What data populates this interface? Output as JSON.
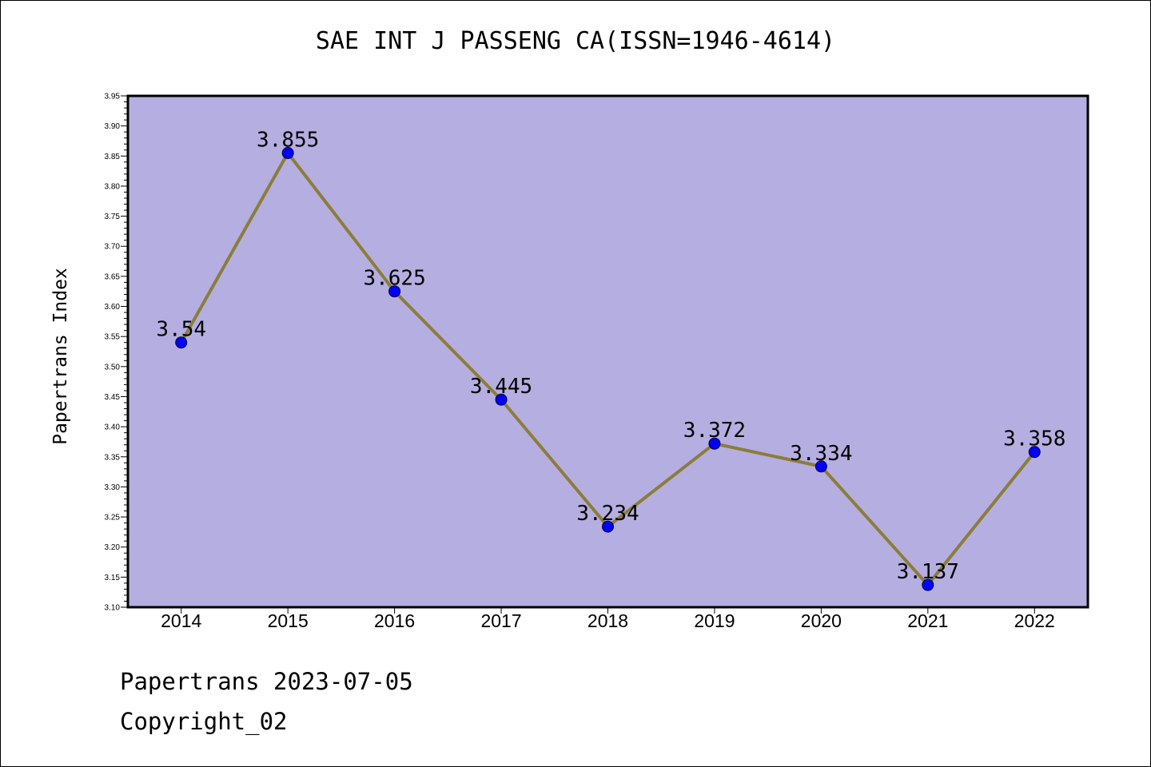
{
  "title": "SAE INT J PASSENG CA(ISSN=1946-4614)",
  "footer": {
    "line1": "Papertrans 2023-07-05",
    "line2": "Copyright_02"
  },
  "colors": {
    "plot_background": "#b5aee0",
    "line": "#8b7d3a",
    "marker": "#0000ff"
  },
  "chart_data": {
    "type": "line",
    "title": "SAE INT J PASSENG CA(ISSN=1946-4614)",
    "xlabel": "",
    "ylabel": "Papertrans Index",
    "ylim": [
      3.1,
      3.95
    ],
    "y_ticks": [
      "3.10",
      "3.15",
      "3.20",
      "3.25",
      "3.30",
      "3.35",
      "3.40",
      "3.45",
      "3.50",
      "3.55",
      "3.60",
      "3.65",
      "3.70",
      "3.75",
      "3.80",
      "3.85",
      "3.90",
      "3.95"
    ],
    "categories": [
      "2014",
      "2015",
      "2016",
      "2017",
      "2018",
      "2019",
      "2020",
      "2021",
      "2022"
    ],
    "values": [
      3.54,
      3.855,
      3.625,
      3.445,
      3.234,
      3.372,
      3.334,
      3.137,
      3.358
    ],
    "data_labels": [
      "3.54",
      "3.855",
      "3.625",
      "3.445",
      "3.234",
      "3.372",
      "3.334",
      "3.137",
      "3.358"
    ],
    "grid": false,
    "legend": "none"
  }
}
